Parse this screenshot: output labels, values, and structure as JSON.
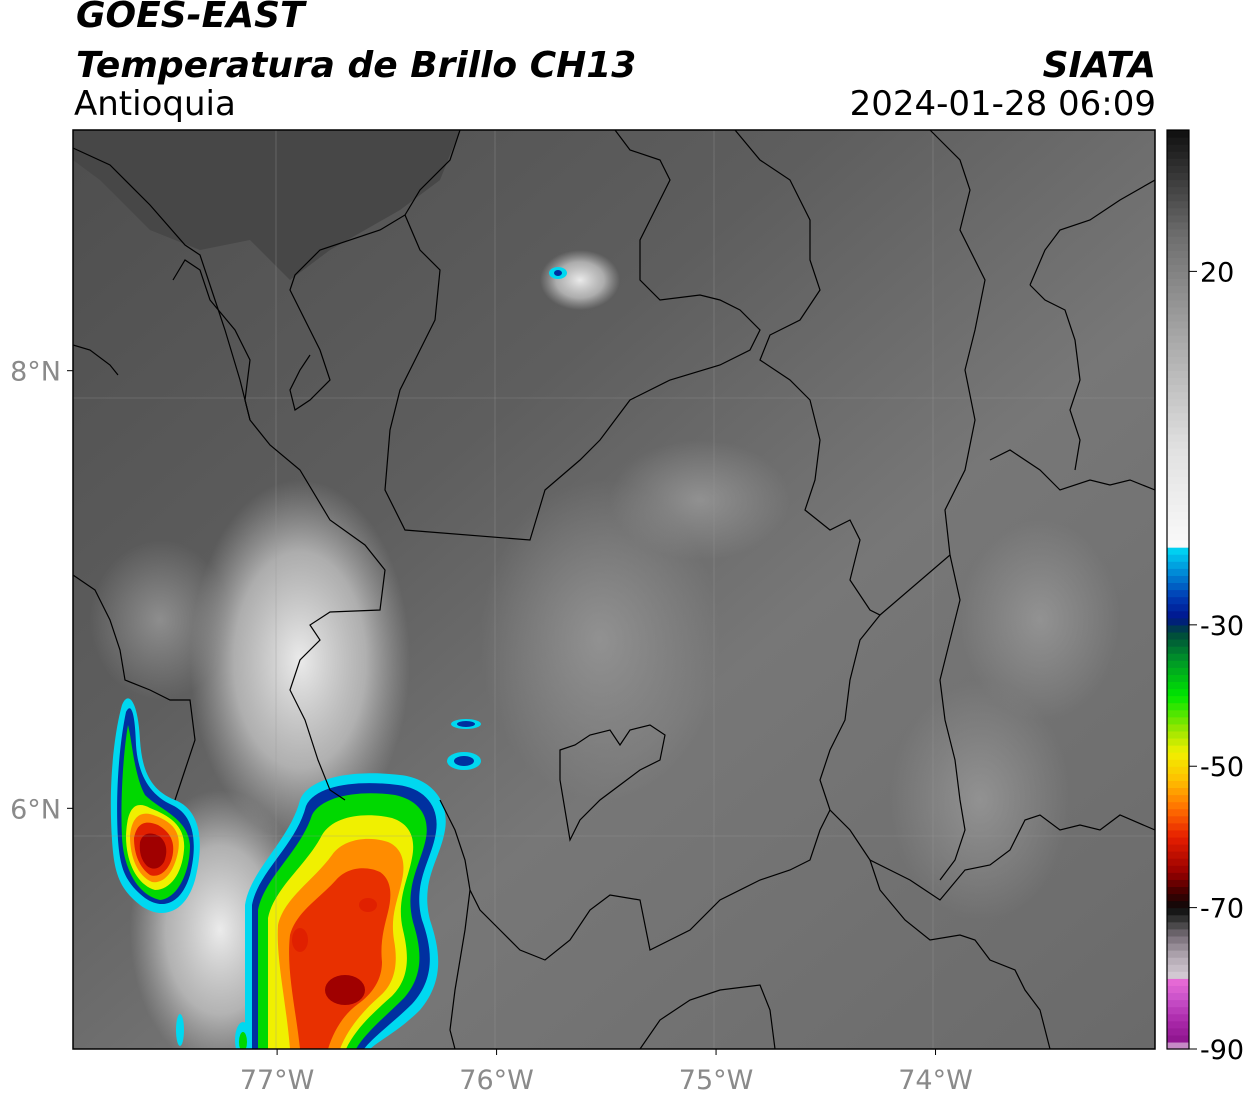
{
  "header": {
    "satellite": "GOES-EAST",
    "product": "Temperatura de Brillo CH13",
    "region": "Antioquia",
    "organization": "SIATA",
    "datetime": "2024-01-28 06:09"
  },
  "map": {
    "lon_range": [
      -77.93,
      -73.0
    ],
    "lat_range": [
      4.9,
      9.1
    ],
    "lon_ticks": [
      {
        "value": -77,
        "label": "77°W"
      },
      {
        "value": -76,
        "label": "76°W"
      },
      {
        "value": -75,
        "label": "75°W"
      },
      {
        "value": -74,
        "label": "74°W"
      }
    ],
    "lat_ticks": [
      {
        "value": 8,
        "label": "8°N"
      },
      {
        "value": 6,
        "label": "6°N"
      }
    ],
    "gridlines": true
  },
  "colorbar": {
    "vmin": -90,
    "vmax": 40,
    "ticks": [
      {
        "value": 20,
        "label": "20"
      },
      {
        "value": -30,
        "label": "-30"
      },
      {
        "value": -50,
        "label": "-50"
      },
      {
        "value": -70,
        "label": "-70"
      },
      {
        "value": -90,
        "label": "-90"
      }
    ]
  },
  "colors": {
    "cold_core": "#a00000",
    "warm_ground": "#6e6e6e",
    "cloud_top_green": "#00d800",
    "cloud_top_yellow": "#f0f000",
    "cloud_edge_blue": "#0030a0",
    "cloud_edge_cyan": "#00d8f0"
  }
}
